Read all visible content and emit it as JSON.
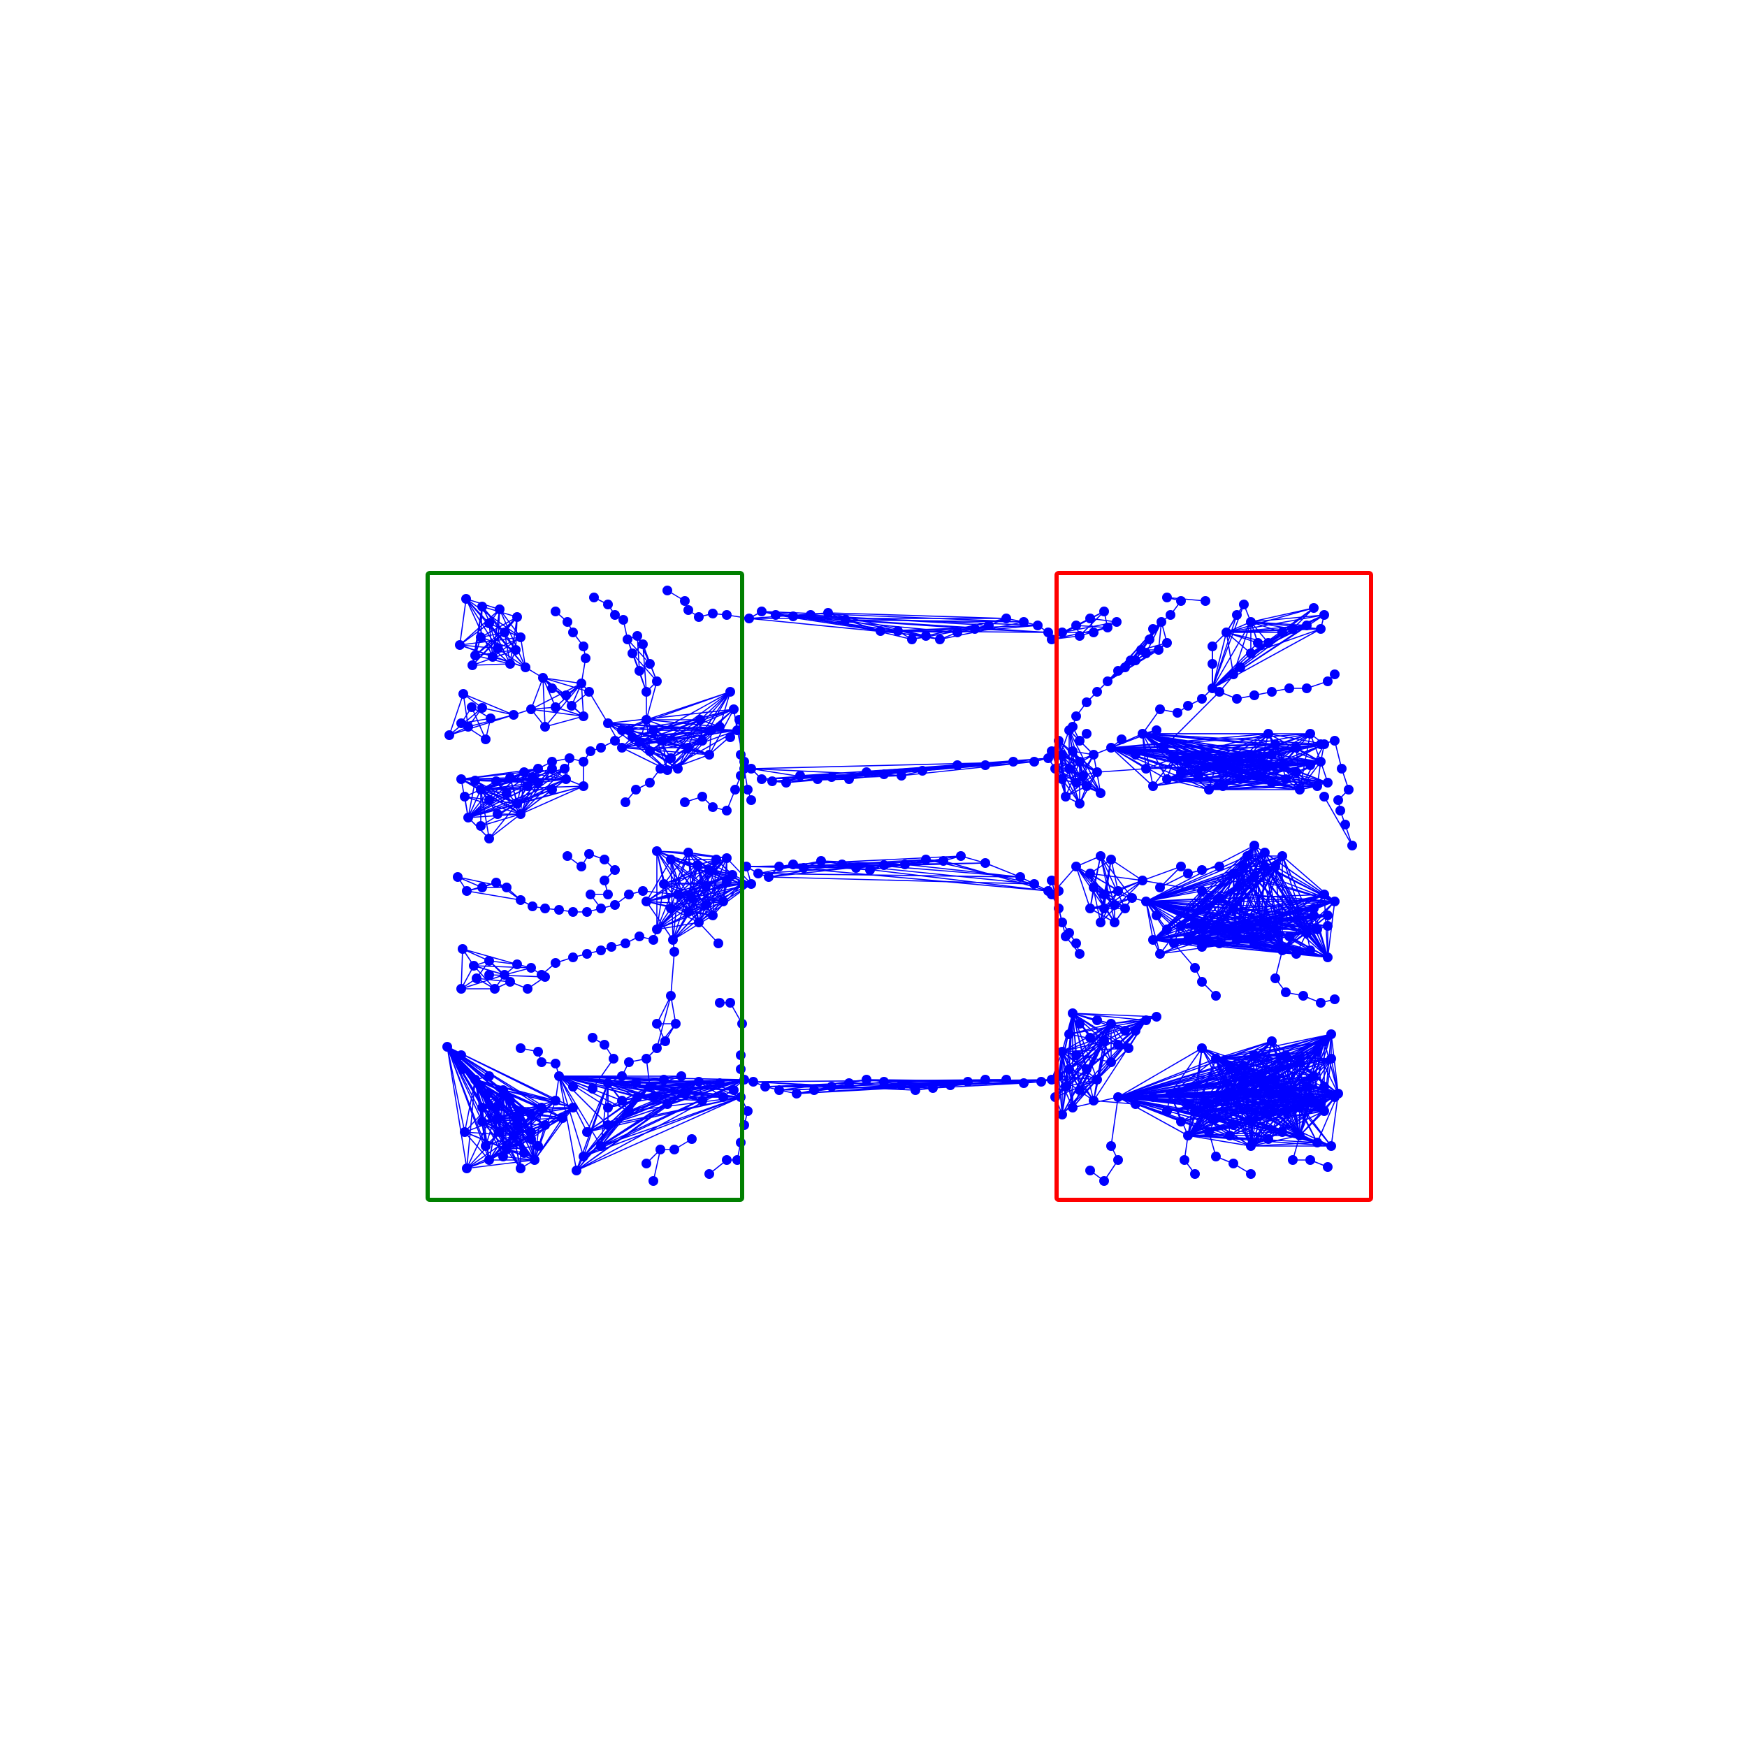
{
  "colors": {
    "background": "#ffffff",
    "node": "#0000ff",
    "edge": "#0000ff",
    "left_region": "#008000",
    "right_region": "#ff0000"
  },
  "regions": [
    {
      "name": "left-region-box",
      "color": "#008000"
    },
    {
      "name": "right-region-box",
      "color": "#ff0000"
    }
  ],
  "structure": {
    "left_cluster_branches": 3,
    "right_cluster_branches": 3,
    "bridging_chains": 4
  }
}
